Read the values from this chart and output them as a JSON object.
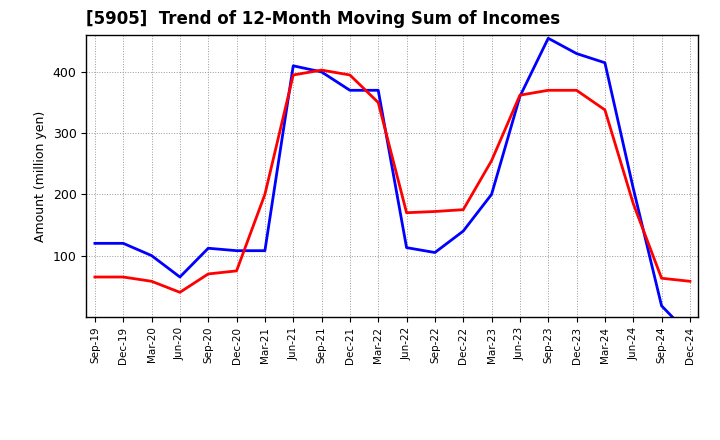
{
  "title": "[5905]  Trend of 12-Month Moving Sum of Incomes",
  "ylabel": "Amount (million yen)",
  "background_color": "#ffffff",
  "grid_color": "#999999",
  "x_labels": [
    "Sep-19",
    "Dec-19",
    "Mar-20",
    "Jun-20",
    "Sep-20",
    "Dec-20",
    "Mar-21",
    "Jun-21",
    "Sep-21",
    "Dec-21",
    "Mar-22",
    "Jun-22",
    "Sep-22",
    "Dec-22",
    "Mar-23",
    "Jun-23",
    "Sep-23",
    "Dec-23",
    "Mar-24",
    "Jun-24",
    "Sep-24",
    "Dec-24"
  ],
  "ordinary_income": [
    120,
    120,
    100,
    65,
    112,
    108,
    108,
    410,
    400,
    370,
    370,
    113,
    105,
    140,
    200,
    360,
    455,
    430,
    415,
    210,
    18,
    -30
  ],
  "net_income": [
    65,
    65,
    58,
    40,
    70,
    75,
    200,
    395,
    403,
    395,
    350,
    170,
    172,
    175,
    255,
    362,
    370,
    370,
    338,
    185,
    63,
    58
  ],
  "ylim": [
    0,
    460
  ],
  "y_ticks": [
    100,
    200,
    300,
    400
  ],
  "ordinary_color": "#0000ff",
  "net_color": "#ff0000",
  "line_width": 2.0,
  "title_fontsize": 12
}
